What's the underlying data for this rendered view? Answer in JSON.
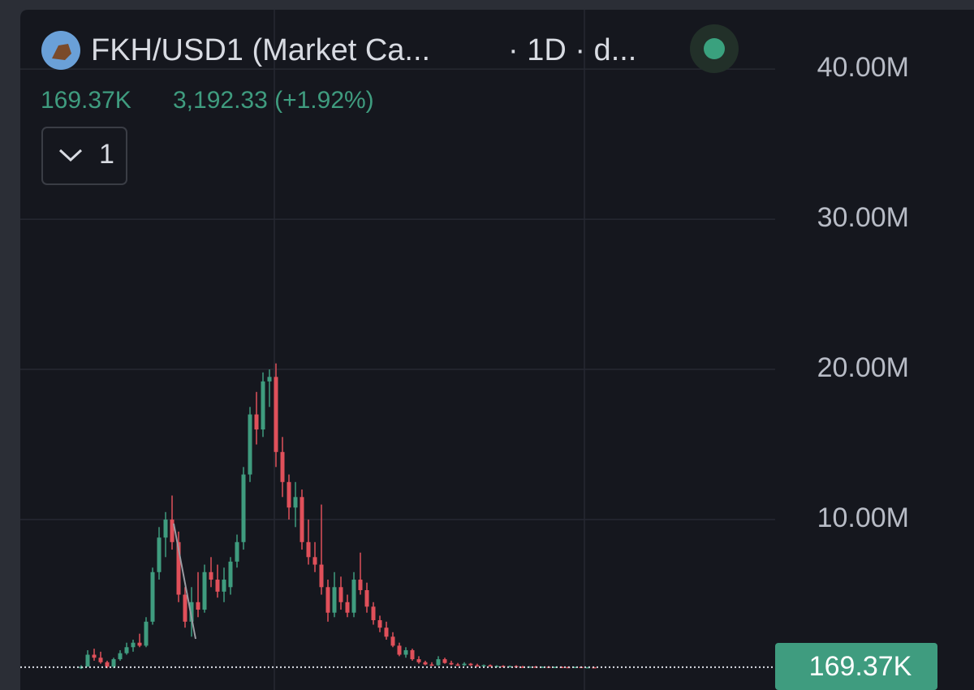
{
  "header": {
    "symbol": "FKH/USD1 (Market Ca...",
    "interval": "· 1D · d...",
    "volume": "169.37K",
    "price_change": "3,192.33 (+1.92%)",
    "indicator_count": "1"
  },
  "chart_data": {
    "type": "candlestick",
    "open": [
      0.1,
      0.2,
      1.0,
      0.8,
      0.5,
      0.2,
      0.7,
      1.1,
      1.5,
      1.8,
      1.6,
      3.2,
      6.5,
      8.8,
      10.0,
      8.5,
      5.0,
      3.2,
      4.5,
      4.0,
      6.5,
      6.0,
      5.2,
      5.5,
      7.2,
      8.5,
      13.0,
      17.0,
      16.0,
      19.2,
      19.5,
      14.5,
      12.5,
      10.8,
      11.5,
      8.5,
      7.5,
      7.0,
      5.5,
      3.8,
      5.5,
      4.5,
      3.8,
      6.0,
      5.3,
      4.2,
      3.3,
      2.8,
      2.2,
      1.6,
      1.0,
      1.3,
      0.7,
      0.5,
      0.35,
      0.3,
      0.7,
      0.45,
      0.35,
      0.3,
      0.4,
      0.3,
      0.25,
      0.3,
      0.22,
      0.25,
      0.2,
      0.24,
      0.2,
      0.18,
      0.21,
      0.18,
      0.2,
      0.17,
      0.19,
      0.18,
      0.17,
      0.19,
      0.16,
      0.17
    ],
    "high": [
      0.3,
      1.3,
      1.4,
      1.2,
      0.6,
      0.8,
      1.3,
      1.8,
      2.0,
      2.4,
      3.5,
      6.8,
      9.5,
      10.5,
      11.6,
      9.2,
      5.5,
      5.5,
      6.5,
      7.0,
      7.5,
      7.0,
      6.8,
      7.5,
      9.0,
      13.5,
      17.5,
      18.5,
      19.8,
      20.0,
      20.4,
      15.5,
      13.0,
      12.5,
      12.0,
      10.0,
      8.5,
      11.0,
      6.0,
      6.5,
      6.2,
      5.0,
      6.5,
      7.8,
      5.8,
      4.5,
      3.6,
      3.2,
      2.5,
      1.8,
      1.5,
      1.4,
      0.9,
      0.6,
      0.5,
      0.9,
      0.8,
      0.6,
      0.45,
      0.5,
      0.45,
      0.4,
      0.35,
      0.35,
      0.3,
      0.3,
      0.28,
      0.3,
      0.26,
      0.24,
      0.25,
      0.22,
      0.24,
      0.21,
      0.22,
      0.21,
      0.2,
      0.21,
      0.18,
      0.18
    ],
    "low": [
      0.05,
      0.2,
      0.6,
      0.4,
      0.1,
      0.1,
      0.6,
      1.0,
      1.2,
      1.5,
      1.5,
      3.0,
      6.0,
      7.5,
      8.0,
      4.5,
      2.8,
      2.2,
      3.5,
      3.8,
      5.5,
      4.8,
      4.5,
      5.0,
      6.8,
      8.0,
      12.5,
      15.0,
      15.5,
      17.5,
      13.5,
      11.5,
      10.0,
      9.5,
      8.0,
      7.0,
      6.5,
      5.0,
      3.2,
      3.5,
      4.0,
      3.5,
      3.5,
      5.0,
      3.8,
      3.0,
      2.5,
      2.0,
      1.5,
      0.9,
      0.8,
      0.6,
      0.4,
      0.3,
      0.25,
      0.25,
      0.4,
      0.3,
      0.25,
      0.25,
      0.25,
      0.2,
      0.2,
      0.2,
      0.18,
      0.18,
      0.16,
      0.18,
      0.15,
      0.15,
      0.16,
      0.15,
      0.16,
      0.15,
      0.16,
      0.15,
      0.15,
      0.16,
      0.15,
      0.16
    ],
    "close": [
      0.2,
      1.0,
      0.8,
      0.5,
      0.2,
      0.7,
      1.1,
      1.5,
      1.8,
      1.6,
      3.2,
      6.5,
      8.8,
      10.0,
      8.5,
      5.0,
      3.2,
      4.5,
      4.0,
      6.5,
      6.0,
      5.2,
      6.0,
      7.2,
      8.5,
      13.0,
      17.0,
      16.0,
      19.2,
      19.5,
      14.5,
      12.5,
      10.8,
      11.5,
      8.5,
      7.5,
      7.0,
      5.5,
      3.8,
      5.5,
      4.5,
      3.8,
      6.0,
      5.3,
      4.2,
      3.3,
      2.8,
      2.2,
      1.6,
      1.0,
      1.3,
      0.7,
      0.5,
      0.35,
      0.3,
      0.7,
      0.45,
      0.35,
      0.3,
      0.4,
      0.3,
      0.25,
      0.3,
      0.22,
      0.25,
      0.2,
      0.24,
      0.2,
      0.18,
      0.21,
      0.18,
      0.2,
      0.17,
      0.19,
      0.18,
      0.17,
      0.19,
      0.16,
      0.17,
      0.16937
    ],
    "up_color": "#3f9c7f",
    "down_color": "#e0505a",
    "ylim": [
      -1.35,
      44.6
    ],
    "yticks": [
      {
        "value": 10,
        "label": "10.00M"
      },
      {
        "value": 20,
        "label": "20.00M"
      },
      {
        "value": 30,
        "label": "30.00M"
      },
      {
        "value": 40,
        "label": "40.00M"
      }
    ],
    "last_price": {
      "value": 0.16937,
      "label": "169.37K"
    },
    "grid": true
  }
}
